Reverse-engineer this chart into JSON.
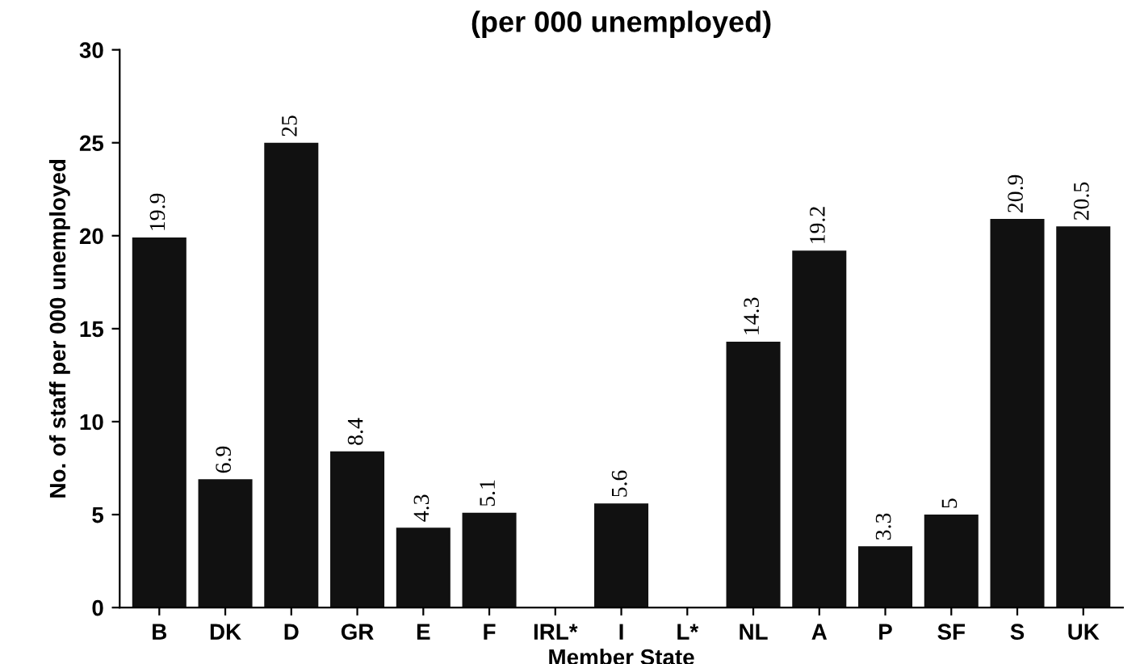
{
  "chart_data": {
    "type": "bar",
    "title": "(per 000 unemployed)",
    "xlabel": "Member State",
    "ylabel": "No. of staff per 000 unemployed",
    "categories": [
      "B",
      "DK",
      "D",
      "GR",
      "E",
      "F",
      "IRL*",
      "I",
      "L*",
      "NL",
      "A",
      "P",
      "SF",
      "S",
      "UK"
    ],
    "values": [
      19.9,
      6.9,
      25,
      8.4,
      4.3,
      5.1,
      null,
      5.6,
      null,
      14.3,
      19.2,
      3.3,
      5,
      20.9,
      20.5
    ],
    "color": "#111111",
    "ylim": [
      0,
      30
    ],
    "yticks": [
      0,
      5,
      10,
      15,
      20,
      25,
      30
    ],
    "data_labels": true,
    "grid": false
  }
}
